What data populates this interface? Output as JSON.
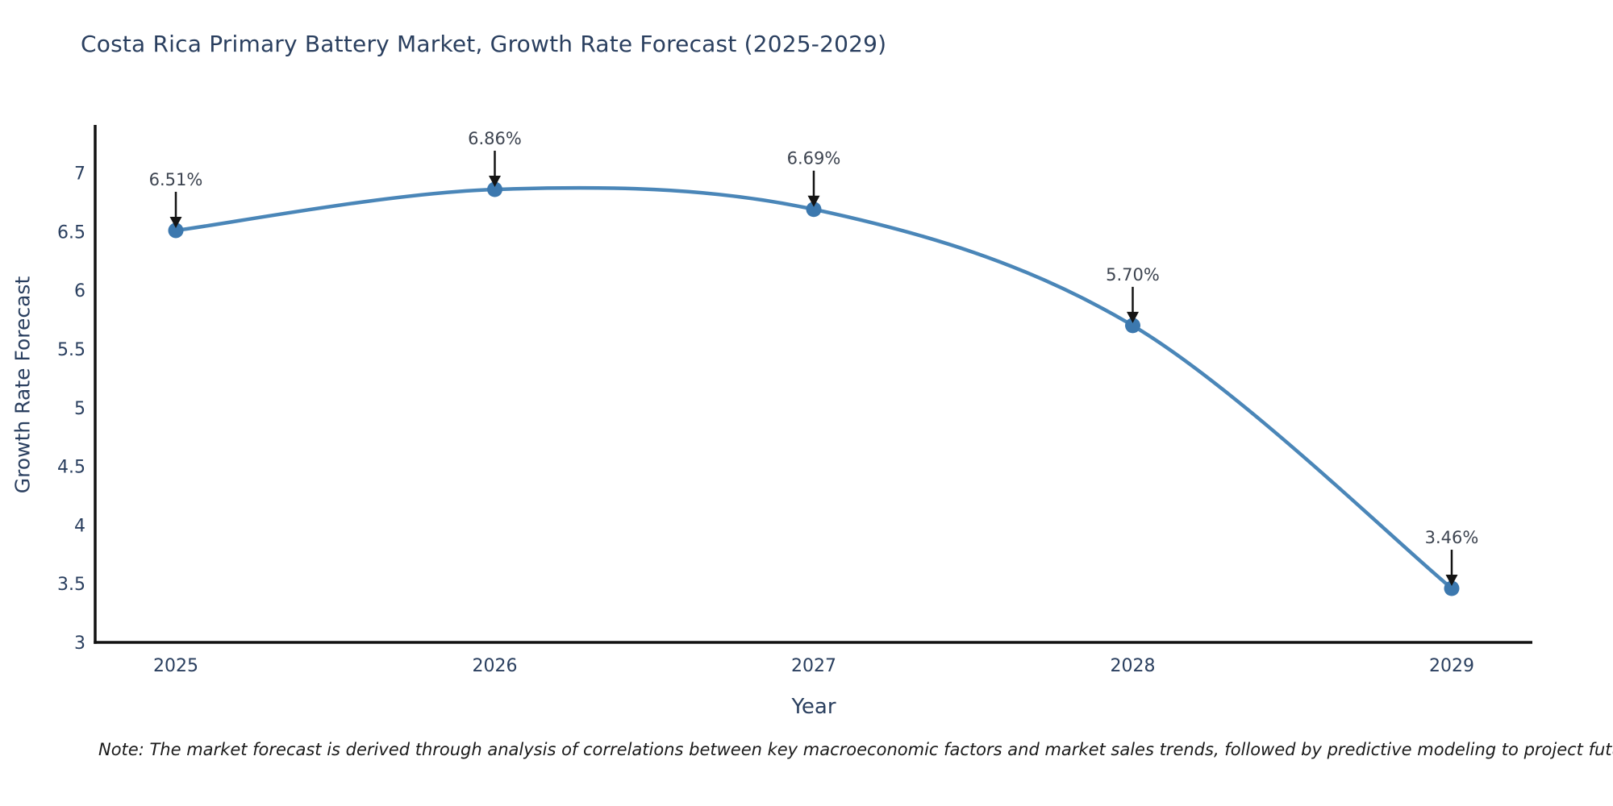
{
  "title": "Costa Rica Primary Battery Market, Growth Rate Forecast (2025-2029)",
  "note": "Note: The market forecast is derived through analysis of correlations between key macroeconomic factors and market sales trends, followed by predictive modeling to project future sales",
  "colors": {
    "background": "#ffffff",
    "title_text": "#2a3f5f",
    "axis_line": "#111111",
    "tick_text": "#2a3f5f",
    "line": "#4a86b8",
    "marker": "#3c78ae",
    "arrow": "#141414",
    "annotation_text": "#3d4450",
    "note_text": "#1a1a1a"
  },
  "chart_data": {
    "type": "line",
    "curve": "spline",
    "title": "Costa Rica Primary Battery Market, Growth Rate Forecast (2025-2029)",
    "xlabel": "Year",
    "ylabel": "Growth Rate Forecast",
    "x": [
      2025,
      2026,
      2027,
      2028,
      2029
    ],
    "values": [
      6.51,
      6.86,
      6.69,
      5.7,
      3.46
    ],
    "point_labels": [
      "6.51%",
      "6.86%",
      "6.69%",
      "5.70%",
      "3.46%"
    ],
    "x_tick_labels": [
      "2025",
      "2026",
      "2027",
      "2028",
      "2029"
    ],
    "y_ticks": [
      3,
      3.5,
      4,
      4.5,
      5,
      5.5,
      6,
      6.5,
      7
    ],
    "y_tick_labels": [
      "3",
      "3.5",
      "4",
      "4.5",
      "5",
      "5.5",
      "6",
      "6.5",
      "7"
    ],
    "ylim": [
      3,
      7.41
    ],
    "xlim": [
      2024.75,
      2029.25
    ],
    "grid": false,
    "legend": null,
    "annotation_style": "down-arrow"
  }
}
